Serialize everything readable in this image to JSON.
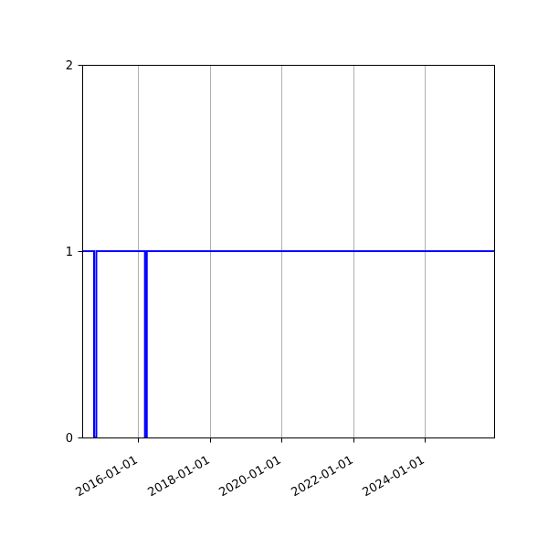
{
  "chart_data": {
    "type": "line",
    "step": true,
    "title": "",
    "xlabel": "",
    "ylabel": "",
    "background_color": "#ffffff",
    "axis_color": "#000000",
    "grid": "vertical",
    "grid_color": "#b0b0b0",
    "x_tick_labels": [
      "2016-01-01",
      "2018-01-01",
      "2020-01-01",
      "2022-01-01",
      "2024-01-01"
    ],
    "x_tick_rotation_deg": 30,
    "y_ticks": [
      0,
      1,
      2
    ],
    "y_tick_labels": [
      "0",
      "1",
      "2"
    ],
    "ylim": [
      0,
      2
    ],
    "xlim_dates": [
      "2014-06-12",
      "2025-12-08"
    ],
    "legend": "none",
    "series": [
      {
        "name": "step-series",
        "color": "#0000ff",
        "line_width": 2,
        "points": [
          [
            "2014-06-12",
            1
          ],
          [
            "2014-10-11",
            1
          ],
          [
            "2014-10-11",
            0
          ],
          [
            "2014-11-03",
            0
          ],
          [
            "2014-11-03",
            1
          ],
          [
            "2016-03-12",
            1
          ],
          [
            "2016-03-12",
            0
          ],
          [
            "2016-03-31",
            0
          ],
          [
            "2016-03-31",
            1
          ],
          [
            "2025-12-08",
            1
          ]
        ]
      }
    ]
  }
}
